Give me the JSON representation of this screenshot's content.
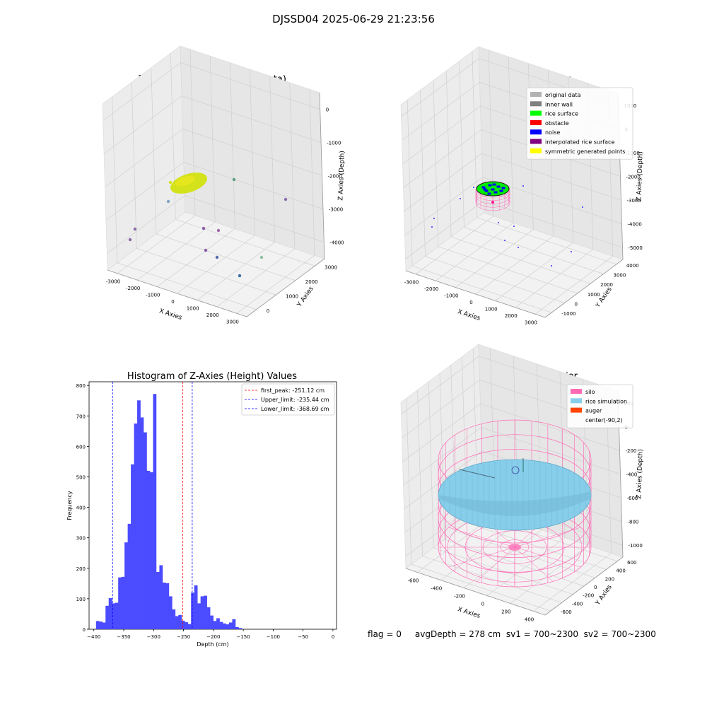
{
  "suptitle": "DJSSD04 2025-06-29 21:23:56",
  "status_line": "flag = 0     avgDepth = 278 cm  sv1 = 700~2300  sv2 = 700~2300",
  "chart_data": [
    {
      "type": "scatter",
      "title": "3D Plot of Silo Interior(row data)",
      "xlabel": "X Axies",
      "ylabel": "Y Axies",
      "zlabel": "Z Axies (Depth)",
      "xticks": [
        "-3000",
        "-2000",
        "-1000",
        "0",
        "1000",
        "2000",
        "3000"
      ],
      "yticks": [
        "0",
        "1000",
        "2000",
        "3000"
      ],
      "zticks": [
        "0",
        "-1000",
        "-2000",
        "-3000",
        "-4000"
      ],
      "cluster_color": "#d4e21c",
      "outlier_points": [
        {
          "x": -2900,
          "y": 300,
          "z": -2300,
          "color": "#8a6aa8"
        },
        {
          "x": -2600,
          "y": 200,
          "z": -1600,
          "color": "#8a6aa8"
        },
        {
          "x": -2300,
          "y": 1300,
          "z": -2200,
          "color": "#7fa2c8"
        },
        {
          "x": 200,
          "y": 400,
          "z": -3100,
          "color": "#8a5aa8"
        },
        {
          "x": 600,
          "y": 900,
          "z": -3000,
          "color": "#9a6aa8"
        },
        {
          "x": 1100,
          "y": 1100,
          "z": -3300,
          "color": "#8a5aa8"
        },
        {
          "x": 2300,
          "y": 300,
          "z": -4000,
          "color": "#5a6ab0"
        },
        {
          "x": 2700,
          "y": 800,
          "z": -3800,
          "color": "#3a6aa8"
        },
        {
          "x": 1800,
          "y": 3000,
          "z": -1700,
          "color": "#8ac0a0"
        },
        {
          "x": 2800,
          "y": 3100,
          "z": -2700,
          "color": "#5aa080"
        }
      ]
    },
    {
      "type": "scatter",
      "title": "3D classify of Silo Interior",
      "xlabel": "X Axies",
      "ylabel": "Y Axies",
      "zlabel": "Z Axies (Depth)",
      "xticks": [
        "-3000",
        "-2000",
        "-1000",
        "0",
        "1000",
        "2000",
        "3000"
      ],
      "yticks": [
        "-1000",
        "0",
        "1000",
        "2000",
        "3000",
        "4000"
      ],
      "zticks": [
        "1000",
        "0",
        "-1000",
        "-2000",
        "-3000",
        "-4000",
        "-5000"
      ],
      "legend": [
        {
          "label": "original data",
          "color": "#b2b2b2"
        },
        {
          "label": "inner wall",
          "color": "#808080"
        },
        {
          "label": "rice surface",
          "color": "#00ff00"
        },
        {
          "label": "obstacle",
          "color": "#ff0000"
        },
        {
          "label": "noise",
          "color": "#0000ff"
        },
        {
          "label": "interpolated rice surface",
          "color": "#800080"
        },
        {
          "label": "symmetric generated points",
          "color": "#ffff00"
        }
      ]
    },
    {
      "type": "bar",
      "title": "Histogram of Z-Axies (Height) Values",
      "xlabel": "Depth (cm)",
      "ylabel": "Frequency",
      "xlim": [
        -408,
        6
      ],
      "ylim": [
        0,
        812
      ],
      "xticks": [
        -400,
        -350,
        -300,
        -250,
        -200,
        -150,
        -100,
        -50,
        0
      ],
      "yticks": [
        0,
        100,
        200,
        300,
        400,
        500,
        600,
        700,
        800
      ],
      "bar_color": "#4b4bff",
      "bin_start": -396.4,
      "bin_width": 5.3,
      "values": [
        27,
        25,
        22,
        77,
        102,
        85,
        87,
        170,
        172,
        285,
        346,
        541,
        675,
        751,
        695,
        646,
        520,
        515,
        772,
        188,
        210,
        153,
        151,
        108,
        65,
        43,
        47,
        28,
        23,
        17,
        120,
        144,
        85,
        108,
        110,
        72,
        45,
        27,
        36,
        24,
        19,
        16,
        22,
        33,
        7,
        4
      ],
      "vlines": [
        {
          "label": "first_peak: -251.12 cm",
          "x": -251.12,
          "color": "#ff0000"
        },
        {
          "label": "Upper_limit: -235.44 cm",
          "x": -235.44,
          "color": "#0000ff"
        },
        {
          "label": "Lower_limit: -368.69 cm",
          "x": -368.69,
          "color": "#0000ff"
        }
      ]
    },
    {
      "type": "scatter",
      "title": "3D simulation of Silo Interior",
      "xlabel": "X Axies",
      "ylabel": "Y Axies",
      "zlabel": "Z Axies (Depth)",
      "xticks": [
        "-600",
        "-400",
        "-200",
        "0",
        "200",
        "400"
      ],
      "yticks": [
        "-600",
        "-400",
        "-200",
        "0",
        "200",
        "400",
        "600"
      ],
      "zticks": [
        "200",
        "0",
        "-200",
        "-400",
        "-600",
        "-800",
        "-1000"
      ],
      "legend": [
        {
          "label": "silo",
          "color": "#ff69b4"
        },
        {
          "label": "rice simulation",
          "color": "#87ceeb"
        },
        {
          "label": "auger",
          "color": "#ff4500"
        },
        {
          "label": "center(-90,2)",
          "color": "none"
        }
      ]
    }
  ]
}
